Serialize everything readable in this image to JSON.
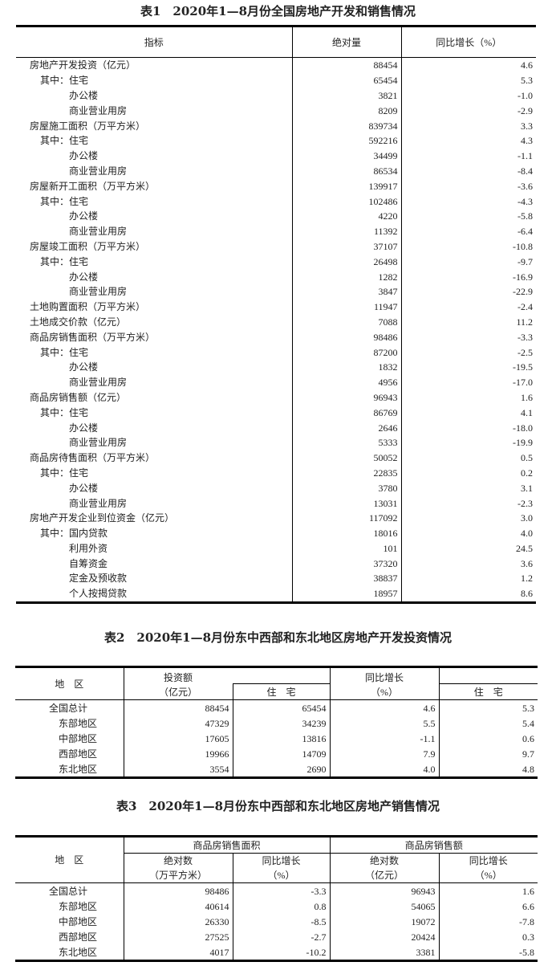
{
  "table1": {
    "title": "表1　2020年1—8月份全国房地产开发和销售情况",
    "headers": [
      "指标",
      "绝对量",
      "同比增长（%）"
    ],
    "rows": [
      {
        "label": "房地产开发投资（亿元）",
        "level": 0,
        "value": "88454",
        "growth": "4.6"
      },
      {
        "label": "其中：住宅",
        "level": 1,
        "value": "65454",
        "growth": "5.3"
      },
      {
        "label": "办公楼",
        "level": 2,
        "value": "3821",
        "growth": "-1.0"
      },
      {
        "label": "商业营业用房",
        "level": 2,
        "value": "8209",
        "growth": "-2.9"
      },
      {
        "label": "房屋施工面积（万平方米）",
        "level": 0,
        "value": "839734",
        "growth": "3.3"
      },
      {
        "label": "其中：住宅",
        "level": 1,
        "value": "592216",
        "growth": "4.3"
      },
      {
        "label": "办公楼",
        "level": 2,
        "value": "34499",
        "growth": "-1.1"
      },
      {
        "label": "商业营业用房",
        "level": 2,
        "value": "86534",
        "growth": "-8.4"
      },
      {
        "label": "房屋新开工面积（万平方米）",
        "level": 0,
        "value": "139917",
        "growth": "-3.6"
      },
      {
        "label": "其中：住宅",
        "level": 1,
        "value": "102486",
        "growth": "-4.3"
      },
      {
        "label": "办公楼",
        "level": 2,
        "value": "4220",
        "growth": "-5.8"
      },
      {
        "label": "商业营业用房",
        "level": 2,
        "value": "11392",
        "growth": "-6.4"
      },
      {
        "label": "房屋竣工面积（万平方米）",
        "level": 0,
        "value": "37107",
        "growth": "-10.8"
      },
      {
        "label": "其中：住宅",
        "level": 1,
        "value": "26498",
        "growth": "-9.7"
      },
      {
        "label": "办公楼",
        "level": 2,
        "value": "1282",
        "growth": "-16.9"
      },
      {
        "label": "商业营业用房",
        "level": 2,
        "value": "3847",
        "growth": "-22.9"
      },
      {
        "label": "土地购置面积（万平方米）",
        "level": 0,
        "value": "11947",
        "growth": "-2.4"
      },
      {
        "label": "土地成交价款（亿元）",
        "level": 0,
        "value": "7088",
        "growth": "11.2"
      },
      {
        "label": "商品房销售面积（万平方米）",
        "level": 0,
        "value": "98486",
        "growth": "-3.3"
      },
      {
        "label": "其中：住宅",
        "level": 1,
        "value": "87200",
        "growth": "-2.5"
      },
      {
        "label": "办公楼",
        "level": 2,
        "value": "1832",
        "growth": "-19.5"
      },
      {
        "label": "商业营业用房",
        "level": 2,
        "value": "4956",
        "growth": "-17.0"
      },
      {
        "label": "商品房销售额（亿元）",
        "level": 0,
        "value": "96943",
        "growth": "1.6"
      },
      {
        "label": "其中：住宅",
        "level": 1,
        "value": "86769",
        "growth": "4.1"
      },
      {
        "label": "办公楼",
        "level": 2,
        "value": "2646",
        "growth": "-18.0"
      },
      {
        "label": "商业营业用房",
        "level": 2,
        "value": "5333",
        "growth": "-19.9"
      },
      {
        "label": "商品房待售面积（万平方米）",
        "level": 0,
        "value": "50052",
        "growth": "0.5"
      },
      {
        "label": "其中：住宅",
        "level": 1,
        "value": "22835",
        "growth": "0.2"
      },
      {
        "label": "办公楼",
        "level": 2,
        "value": "3780",
        "growth": "3.1"
      },
      {
        "label": "商业营业用房",
        "level": 2,
        "value": "13031",
        "growth": "-2.3"
      },
      {
        "label": "房地产开发企业到位资金（亿元）",
        "level": 0,
        "value": "117092",
        "growth": "3.0"
      },
      {
        "label": "其中：国内贷款",
        "level": 1,
        "value": "18016",
        "growth": "4.0"
      },
      {
        "label": "利用外资",
        "level": 2,
        "value": "101",
        "growth": "24.5"
      },
      {
        "label": "自筹资金",
        "level": 2,
        "value": "37320",
        "growth": "3.6"
      },
      {
        "label": "定金及预收款",
        "level": 2,
        "value": "38837",
        "growth": "1.2"
      },
      {
        "label": "个人按揭贷款",
        "level": 2,
        "value": "18957",
        "growth": "8.6"
      }
    ]
  },
  "table2": {
    "title": "表2　2020年1—8月份东中西部和东北地区房地产开发投资情况",
    "headers": {
      "region": "地　区",
      "investment": "投资额",
      "investment_unit": "（亿元）",
      "residential": "住　宅",
      "growth": "同比增长",
      "growth_unit": "（%）",
      "growth_residential": "住　宅"
    },
    "rows": [
      {
        "region": "全国总计",
        "level": 0,
        "investment": "88454",
        "residential": "65454",
        "growth": "4.6",
        "growth_residential": "5.3"
      },
      {
        "region": "东部地区",
        "level": 1,
        "investment": "47329",
        "residential": "34239",
        "growth": "5.5",
        "growth_residential": "5.4"
      },
      {
        "region": "中部地区",
        "level": 1,
        "investment": "17605",
        "residential": "13816",
        "growth": "-1.1",
        "growth_residential": "0.6"
      },
      {
        "region": "西部地区",
        "level": 1,
        "investment": "19966",
        "residential": "14709",
        "growth": "7.9",
        "growth_residential": "9.7"
      },
      {
        "region": "东北地区",
        "level": 1,
        "investment": "3554",
        "residential": "2690",
        "growth": "4.0",
        "growth_residential": "4.8"
      }
    ]
  },
  "table3": {
    "title": "表3　2020年1—8月份东中西部和东北地区房地产销售情况",
    "headers": {
      "region": "地　区",
      "area_group": "商品房销售面积",
      "sales_group": "商品房销售额",
      "abs": "绝对数",
      "area_unit": "（万平方米）",
      "growth": "同比增长",
      "pct_unit": "（%）",
      "sales_unit": "（亿元）"
    },
    "rows": [
      {
        "region": "全国总计",
        "level": 0,
        "area": "98486",
        "area_growth": "-3.3",
        "sales": "96943",
        "sales_growth": "1.6"
      },
      {
        "region": "东部地区",
        "level": 1,
        "area": "40614",
        "area_growth": "0.8",
        "sales": "54065",
        "sales_growth": "6.6"
      },
      {
        "region": "中部地区",
        "level": 1,
        "area": "26330",
        "area_growth": "-8.5",
        "sales": "19072",
        "sales_growth": "-7.8"
      },
      {
        "region": "西部地区",
        "level": 1,
        "area": "27525",
        "area_growth": "-2.7",
        "sales": "20424",
        "sales_growth": "0.3"
      },
      {
        "region": "东北地区",
        "level": 1,
        "area": "4017",
        "area_growth": "-10.2",
        "sales": "3381",
        "sales_growth": "-5.8"
      }
    ]
  }
}
